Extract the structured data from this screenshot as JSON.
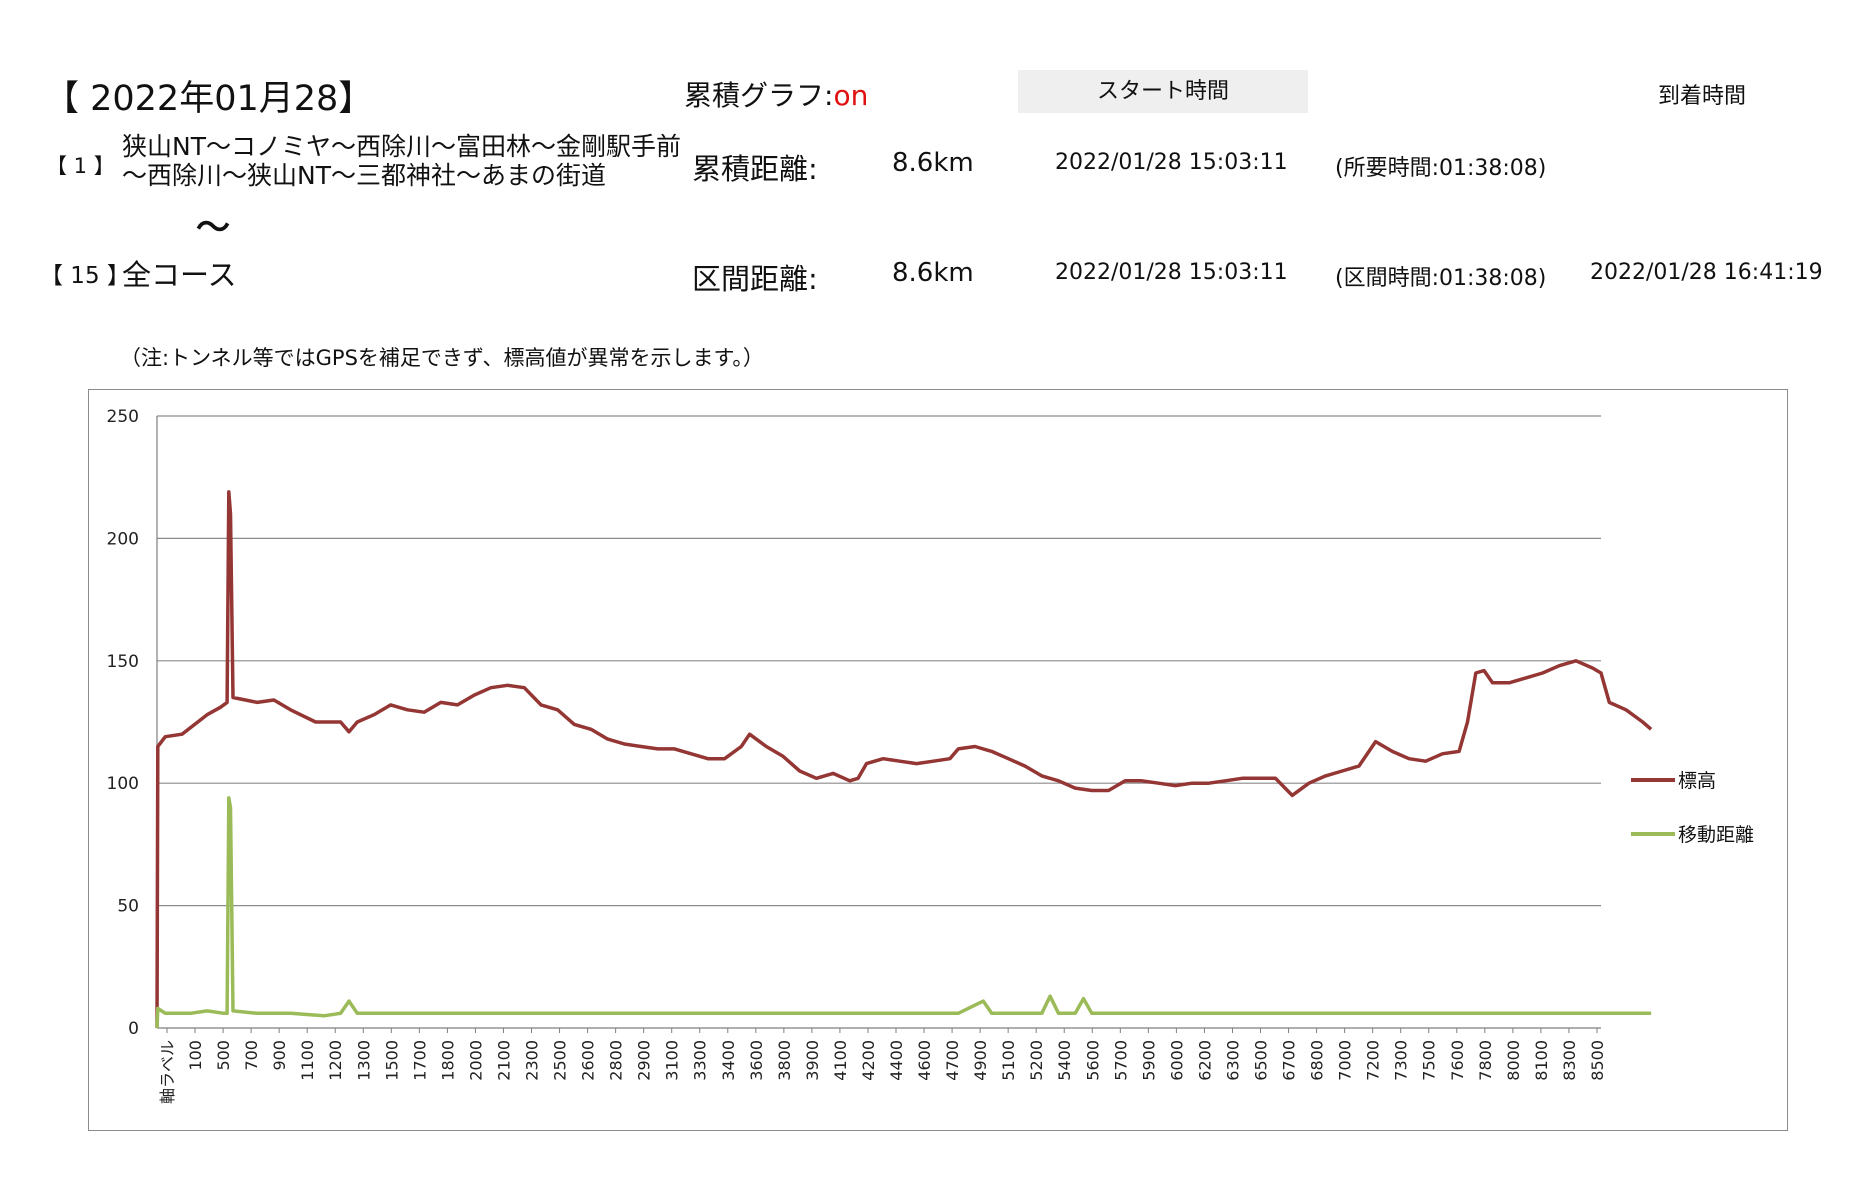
{
  "header": {
    "date_title": "【 2022年01月28】",
    "graph_label": "累積グラフ:",
    "graph_status": "on",
    "start_time_header": "スタート時間",
    "arrival_time_header": "到着時間"
  },
  "route": {
    "start_index": "【 1 】",
    "description": "狭山NT～コノミヤ～西除川～富田林～金剛駅手前～西除川～狭山NT～三都神社～あまの街道",
    "tilde": "～",
    "end_index": "【 15 】",
    "end_description": "全コース"
  },
  "stats": {
    "cumulative_label": "累積距離:",
    "cumulative_value": "8.6km",
    "cumulative_start_time": "2022/01/28 15:03:11",
    "elapsed_time": "(所要時間:01:38:08)",
    "segment_label": "区間距離:",
    "segment_value": "8.6km",
    "segment_start_time": "2022/01/28 15:03:11",
    "segment_time": "(区間時間:01:38:08)",
    "arrival_time": "2022/01/28 16:41:19"
  },
  "note": "（注:トンネル等ではGPSを補足できず、標高値が異常を示します。）",
  "chart_data": {
    "type": "line",
    "title": "",
    "xlabel": "",
    "ylabel": "",
    "ylim": [
      0,
      250
    ],
    "yticks": [
      0,
      50,
      100,
      150,
      200,
      250
    ],
    "xlim": [
      0,
      8650
    ],
    "xticks": [
      "軸ラベル",
      "100",
      "500",
      "700",
      "900",
      "1100",
      "1200",
      "1300",
      "1500",
      "1700",
      "1800",
      "2000",
      "2100",
      "2300",
      "2500",
      "2600",
      "2800",
      "2900",
      "3100",
      "3300",
      "3400",
      "3600",
      "3800",
      "3900",
      "4100",
      "4200",
      "4400",
      "4600",
      "4700",
      "4900",
      "5100",
      "5200",
      "5400",
      "5600",
      "5700",
      "5900",
      "6000",
      "6200",
      "6300",
      "6500",
      "6700",
      "6800",
      "7000",
      "7200",
      "7300",
      "7500",
      "7600",
      "7800",
      "8000",
      "8100",
      "8300",
      "8500"
    ],
    "grid": true,
    "legend_position": "right",
    "series": [
      {
        "name": "標高",
        "color": "#943634",
        "points": [
          [
            0,
            0
          ],
          [
            5,
            115
          ],
          [
            50,
            119
          ],
          [
            150,
            120
          ],
          [
            300,
            128
          ],
          [
            380,
            131
          ],
          [
            420,
            133
          ],
          [
            430,
            219
          ],
          [
            440,
            210
          ],
          [
            455,
            135
          ],
          [
            600,
            133
          ],
          [
            700,
            134
          ],
          [
            800,
            130
          ],
          [
            950,
            125
          ],
          [
            1100,
            125
          ],
          [
            1150,
            121
          ],
          [
            1200,
            125
          ],
          [
            1300,
            128
          ],
          [
            1400,
            132
          ],
          [
            1500,
            130
          ],
          [
            1600,
            129
          ],
          [
            1700,
            133
          ],
          [
            1800,
            132
          ],
          [
            1900,
            136
          ],
          [
            2000,
            139
          ],
          [
            2100,
            140
          ],
          [
            2200,
            139
          ],
          [
            2300,
            132
          ],
          [
            2400,
            130
          ],
          [
            2500,
            124
          ],
          [
            2600,
            122
          ],
          [
            2700,
            118
          ],
          [
            2800,
            116
          ],
          [
            2900,
            115
          ],
          [
            3000,
            114
          ],
          [
            3100,
            114
          ],
          [
            3200,
            112
          ],
          [
            3300,
            110
          ],
          [
            3400,
            110
          ],
          [
            3500,
            115
          ],
          [
            3550,
            120
          ],
          [
            3650,
            115
          ],
          [
            3750,
            111
          ],
          [
            3850,
            105
          ],
          [
            3950,
            102
          ],
          [
            4050,
            104
          ],
          [
            4150,
            101
          ],
          [
            4200,
            102
          ],
          [
            4250,
            108
          ],
          [
            4350,
            110
          ],
          [
            4450,
            109
          ],
          [
            4550,
            108
          ],
          [
            4650,
            109
          ],
          [
            4750,
            110
          ],
          [
            4800,
            114
          ],
          [
            4900,
            115
          ],
          [
            5000,
            113
          ],
          [
            5100,
            110
          ],
          [
            5200,
            107
          ],
          [
            5300,
            103
          ],
          [
            5400,
            101
          ],
          [
            5500,
            98
          ],
          [
            5600,
            97
          ],
          [
            5700,
            97
          ],
          [
            5750,
            99
          ],
          [
            5800,
            101
          ],
          [
            5900,
            101
          ],
          [
            6000,
            100
          ],
          [
            6100,
            99
          ],
          [
            6200,
            100
          ],
          [
            6300,
            100
          ],
          [
            6400,
            101
          ],
          [
            6500,
            102
          ],
          [
            6600,
            102
          ],
          [
            6700,
            102
          ],
          [
            6800,
            95
          ],
          [
            6900,
            100
          ],
          [
            7000,
            103
          ],
          [
            7100,
            105
          ],
          [
            7200,
            107
          ],
          [
            7300,
            117
          ],
          [
            7400,
            113
          ],
          [
            7500,
            110
          ],
          [
            7600,
            109
          ],
          [
            7700,
            112
          ],
          [
            7800,
            113
          ],
          [
            7850,
            125
          ],
          [
            7900,
            145
          ],
          [
            7950,
            146
          ],
          [
            8000,
            141
          ],
          [
            8100,
            141
          ],
          [
            8200,
            143
          ],
          [
            8300,
            145
          ],
          [
            8400,
            148
          ],
          [
            8500,
            150
          ],
          [
            8600,
            147
          ],
          [
            8650,
            145
          ],
          [
            8700,
            133
          ],
          [
            8800,
            130
          ],
          [
            8900,
            125
          ],
          [
            8950,
            122
          ]
        ]
      },
      {
        "name": "移動距離",
        "color": "#9bbb59",
        "points": [
          [
            0,
            0
          ],
          [
            5,
            8
          ],
          [
            50,
            6
          ],
          [
            200,
            6
          ],
          [
            300,
            7
          ],
          [
            400,
            6
          ],
          [
            420,
            6
          ],
          [
            430,
            94
          ],
          [
            440,
            90
          ],
          [
            455,
            7
          ],
          [
            600,
            6
          ],
          [
            800,
            6
          ],
          [
            1000,
            5
          ],
          [
            1100,
            6
          ],
          [
            1150,
            11
          ],
          [
            1200,
            6
          ],
          [
            1400,
            6
          ],
          [
            1600,
            6
          ],
          [
            1800,
            6
          ],
          [
            2000,
            6
          ],
          [
            2200,
            6
          ],
          [
            2400,
            6
          ],
          [
            2600,
            6
          ],
          [
            2800,
            6
          ],
          [
            3000,
            6
          ],
          [
            3200,
            6
          ],
          [
            3400,
            6
          ],
          [
            3600,
            6
          ],
          [
            3800,
            6
          ],
          [
            4000,
            6
          ],
          [
            4200,
            6
          ],
          [
            4400,
            6
          ],
          [
            4600,
            6
          ],
          [
            4800,
            6
          ],
          [
            4950,
            11
          ],
          [
            5000,
            6
          ],
          [
            5200,
            6
          ],
          [
            5300,
            6
          ],
          [
            5350,
            13
          ],
          [
            5400,
            6
          ],
          [
            5500,
            6
          ],
          [
            5550,
            12
          ],
          [
            5600,
            6
          ],
          [
            5800,
            6
          ],
          [
            6000,
            6
          ],
          [
            6200,
            6
          ],
          [
            6400,
            6
          ],
          [
            6600,
            6
          ],
          [
            6800,
            6
          ],
          [
            7000,
            6
          ],
          [
            7200,
            6
          ],
          [
            7400,
            6
          ],
          [
            7600,
            6
          ],
          [
            7800,
            6
          ],
          [
            8000,
            6
          ],
          [
            8200,
            6
          ],
          [
            8400,
            6
          ],
          [
            8600,
            6
          ],
          [
            8800,
            6
          ],
          [
            8950,
            6
          ]
        ]
      }
    ]
  }
}
